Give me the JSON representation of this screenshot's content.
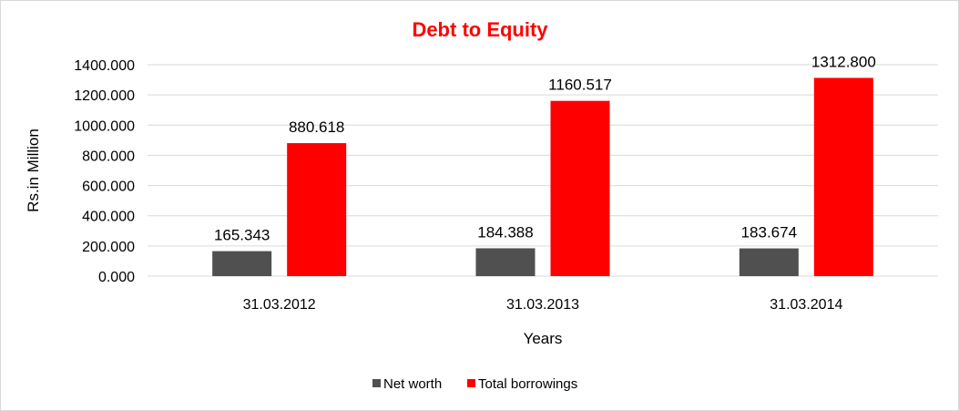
{
  "chart_data": {
    "type": "bar",
    "title": "Debt to Equity",
    "title_color": "#FF0000",
    "xlabel": "Years",
    "ylabel": "Rs.in Million",
    "categories": [
      "31.03.2012",
      "31.03.2013",
      "31.03.2014"
    ],
    "series": [
      {
        "name": "Net worth",
        "color": "#505050",
        "values": [
          165.343,
          184.388,
          183.674
        ],
        "labels": [
          "165.343",
          "184.388",
          "183.674"
        ]
      },
      {
        "name": "Total borrowings",
        "color": "#FF0000",
        "values": [
          880.618,
          1160.517,
          1312.8
        ],
        "labels": [
          "880.618",
          "1160.517",
          "1312.800"
        ]
      }
    ],
    "ylim": [
      0,
      1400
    ],
    "yticks": [
      0,
      200,
      400,
      600,
      800,
      1000,
      1200,
      1400
    ],
    "ytick_labels": [
      "0.000",
      "200.000",
      "400.000",
      "600.000",
      "800.000",
      "1000.000",
      "1200.000",
      "1400.000"
    ],
    "grid": true,
    "legend_position": "bottom"
  }
}
